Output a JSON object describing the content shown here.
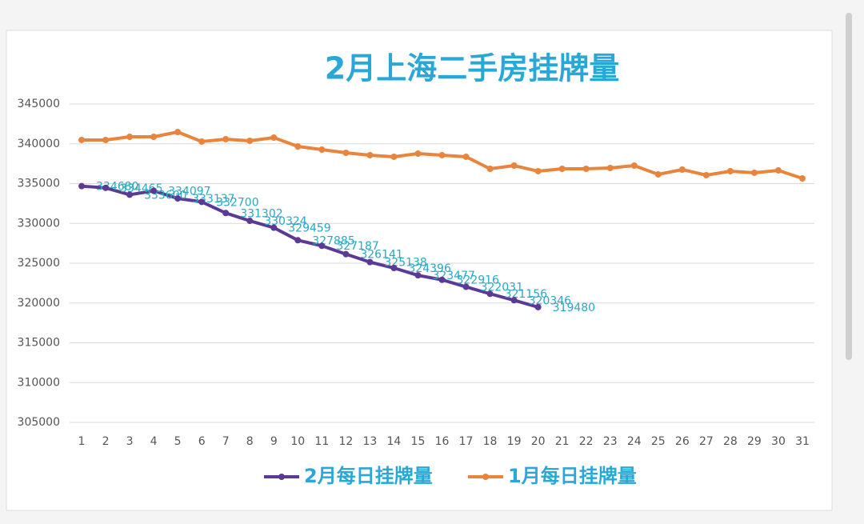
{
  "chart_data": {
    "type": "line",
    "title": "2月上海二手房挂牌量",
    "categories": [
      "1",
      "2",
      "3",
      "4",
      "5",
      "6",
      "7",
      "8",
      "9",
      "10",
      "11",
      "12",
      "13",
      "14",
      "15",
      "16",
      "17",
      "18",
      "19",
      "20",
      "21",
      "22",
      "23",
      "24",
      "25",
      "26",
      "27",
      "28",
      "29",
      "30",
      "31"
    ],
    "series": [
      {
        "name": "2月每日挂牌量",
        "color": "#5b3a96",
        "data_labels": true,
        "values": [
          334680,
          334465,
          333600,
          334097,
          333137,
          332700,
          331302,
          330324,
          329459,
          327885,
          327187,
          326141,
          325138,
          324396,
          323477,
          322916,
          322031,
          321156,
          320346,
          319480,
          null,
          null,
          null,
          null,
          null,
          null,
          null,
          null,
          null,
          null,
          null
        ]
      },
      {
        "name": "1月每日挂牌量",
        "color": "#e8843c",
        "data_labels": false,
        "values": [
          340480,
          340480,
          340880,
          340880,
          341480,
          340280,
          340580,
          340380,
          340780,
          339670,
          339270,
          338870,
          338570,
          338370,
          338770,
          338570,
          338370,
          336860,
          337260,
          336560,
          336860,
          336860,
          336960,
          337260,
          336160,
          336760,
          336060,
          336560,
          336360,
          336660,
          335650
        ]
      }
    ],
    "ylim": [
      305000,
      345000
    ],
    "yticks": [
      305000,
      310000,
      315000,
      320000,
      325000,
      330000,
      335000,
      340000,
      345000
    ],
    "grid": true,
    "legend": "bottom"
  }
}
